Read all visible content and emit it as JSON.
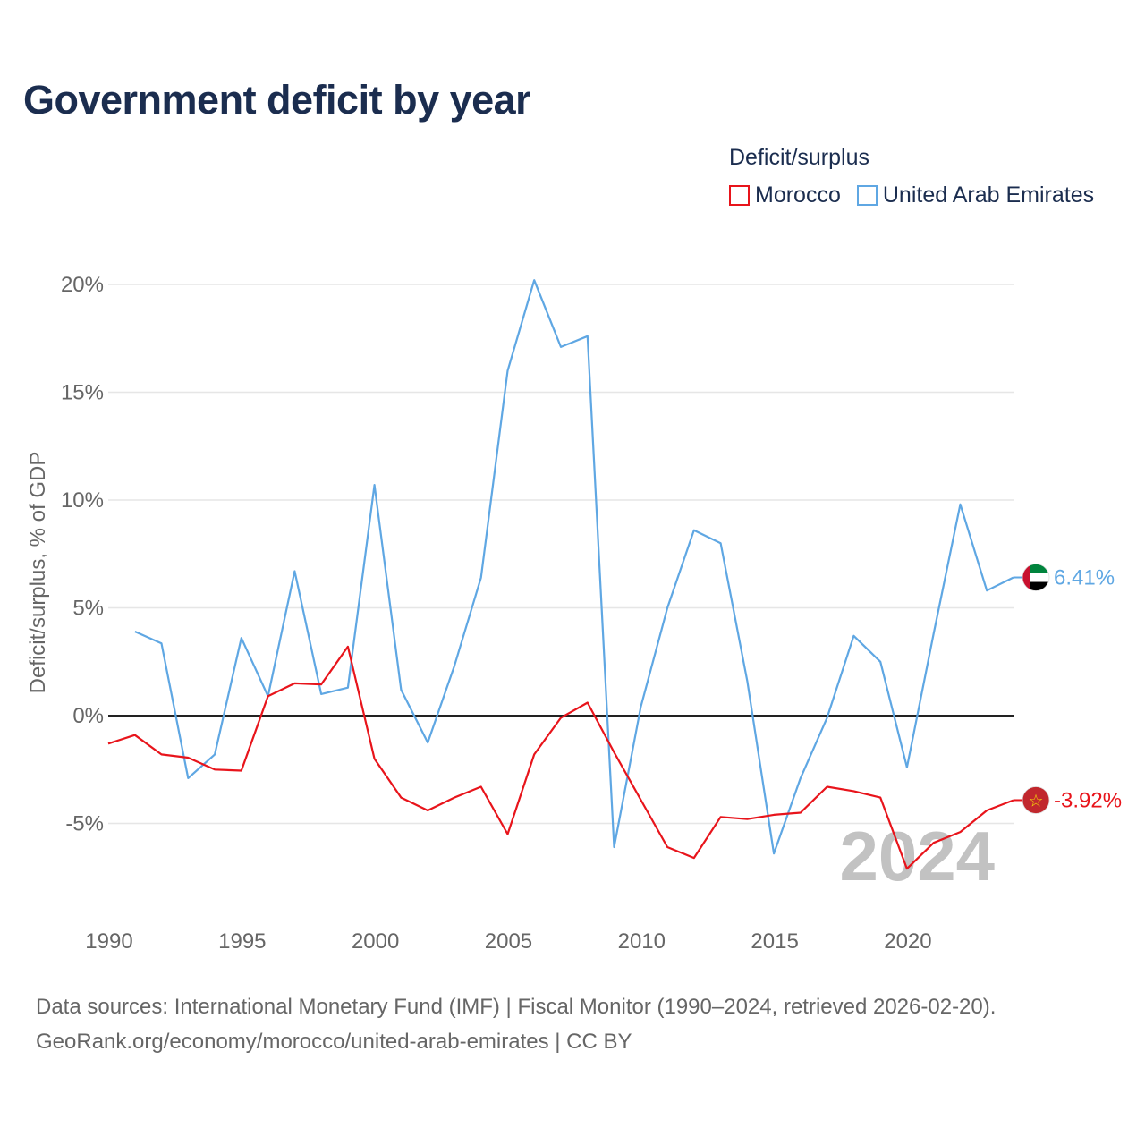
{
  "title": "Government deficit by year",
  "legend": {
    "title": "Deficit/surplus",
    "items": [
      {
        "label": "Morocco",
        "color": "#e8141b"
      },
      {
        "label": "United Arab Emirates",
        "color": "#5fa7e3"
      }
    ]
  },
  "footer": {
    "sources": "Data sources: International Monetary Fund (IMF) | Fiscal Monitor (1990–2024, retrieved 2026-02-20).",
    "credit": "GeoRank.org/economy/morocco/united-arab-emirates | CC BY"
  },
  "chart_data": {
    "type": "line",
    "ylabel": "Deficit/surplus, % of GDP",
    "xlim": [
      1990,
      2024
    ],
    "ylim": [
      -8.5,
      20.5
    ],
    "x_ticks": [
      1990,
      1995,
      2000,
      2005,
      2010,
      2015,
      2020
    ],
    "y_ticks": [
      {
        "value": 20,
        "label": "20%"
      },
      {
        "value": 15,
        "label": "15%"
      },
      {
        "value": 10,
        "label": "10%"
      },
      {
        "value": 5,
        "label": "5%"
      },
      {
        "value": 0,
        "label": "0%"
      },
      {
        "value": -5,
        "label": "-5%"
      }
    ],
    "year_watermark": "2024",
    "series": [
      {
        "name": "Morocco",
        "color": "#e8141b",
        "end_label": "-3.92%",
        "flag": "morocco-flag-icon",
        "x": [
          1990,
          1991,
          1992,
          1993,
          1994,
          1995,
          1996,
          1997,
          1998,
          1999,
          2000,
          2001,
          2002,
          2003,
          2004,
          2005,
          2006,
          2007,
          2008,
          2009,
          2010,
          2011,
          2012,
          2013,
          2014,
          2015,
          2016,
          2017,
          2018,
          2019,
          2020,
          2021,
          2022,
          2023,
          2024
        ],
        "values": [
          -1.3,
          -0.9,
          -1.8,
          -1.95,
          -2.5,
          -2.55,
          0.9,
          1.5,
          1.45,
          3.2,
          -2.0,
          -3.8,
          -4.4,
          -3.8,
          -3.3,
          -5.5,
          -1.8,
          -0.1,
          0.6,
          -1.7,
          -3.9,
          -6.1,
          -6.6,
          -4.7,
          -4.8,
          -4.6,
          -4.5,
          -3.3,
          -3.5,
          -3.8,
          -7.1,
          -5.9,
          -5.4,
          -4.4,
          -3.92
        ]
      },
      {
        "name": "United Arab Emirates",
        "color": "#5fa7e3",
        "end_label": "6.41%",
        "flag": "uae-flag-icon",
        "x": [
          1991,
          1992,
          1993,
          1994,
          1995,
          1996,
          1997,
          1998,
          1999,
          2000,
          2001,
          2002,
          2003,
          2004,
          2005,
          2006,
          2007,
          2008,
          2009,
          2010,
          2011,
          2012,
          2013,
          2014,
          2015,
          2016,
          2017,
          2018,
          2019,
          2020,
          2021,
          2022,
          2023,
          2024
        ],
        "values": [
          3.9,
          3.35,
          -2.9,
          -1.8,
          3.6,
          0.9,
          6.7,
          1.0,
          1.3,
          10.7,
          1.2,
          -1.25,
          2.3,
          6.4,
          16.0,
          20.2,
          17.1,
          17.6,
          -6.1,
          0.4,
          5.0,
          8.6,
          8.0,
          1.6,
          -6.4,
          -2.9,
          -0.1,
          3.7,
          2.5,
          -2.4,
          3.8,
          9.8,
          5.8,
          6.41
        ]
      }
    ]
  }
}
